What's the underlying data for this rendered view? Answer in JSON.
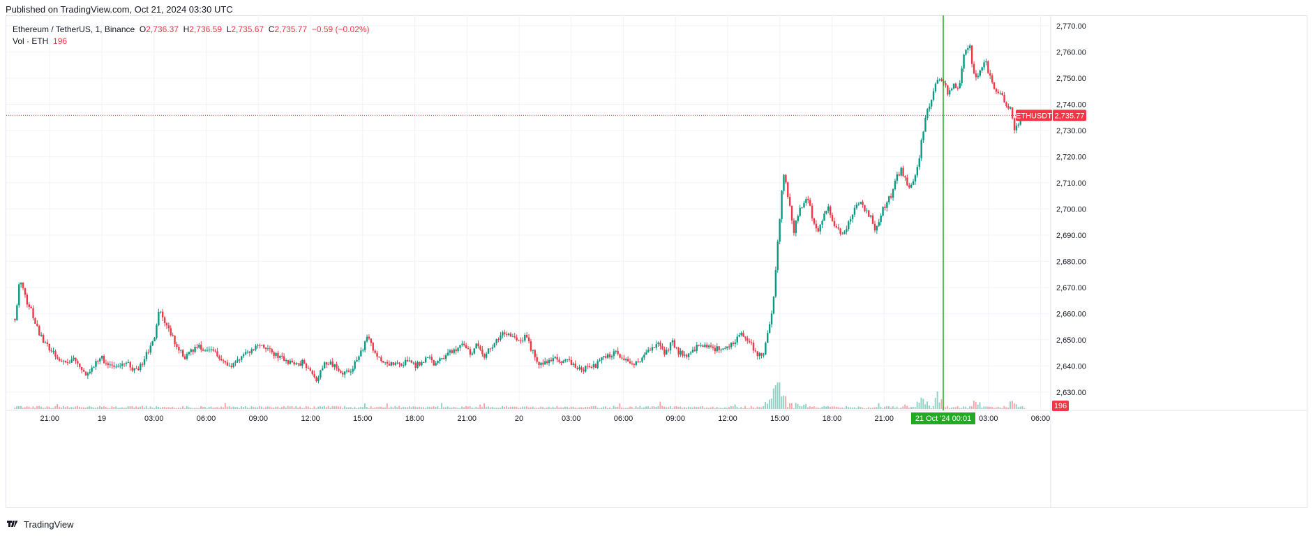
{
  "header": {
    "published": "Published on TradingView.com, Oct 21, 2024 03:30 UTC"
  },
  "legend": {
    "symbol": "Ethereum / TetherUS, 1, Binance",
    "o_label": "O",
    "o_value": "2,736.37",
    "h_label": "H",
    "h_value": "2,736.59",
    "l_label": "L",
    "l_value": "2,735.67",
    "c_label": "C",
    "c_value": "2,735.77",
    "change": "−0.59 (−0.02%)",
    "vol_label": "Vol · ETH",
    "vol_value": "196"
  },
  "footer": {
    "brand": "TradingView"
  },
  "colors": {
    "up": "#089981",
    "down": "#f23645",
    "crosshair": "#22ab22",
    "grid": "#f0f3fa"
  },
  "chart_data": {
    "type": "candlestick",
    "title": "Ethereum / TetherUS, 1, Binance",
    "xlabel": "",
    "ylabel": "",
    "y_scale_side": "right",
    "ylim": [
      2623,
      2774
    ],
    "y_ticks": [
      "2,630.00",
      "2,640.00",
      "2,650.00",
      "2,660.00",
      "2,670.00",
      "2,680.00",
      "2,690.00",
      "2,700.00",
      "2,710.00",
      "2,720.00",
      "2,730.00",
      "2,740.00",
      "2,750.00",
      "2,760.00",
      "2,770.00"
    ],
    "x_ticks": [
      {
        "label": "21:00",
        "hour": 2
      },
      {
        "label": "19",
        "hour": 5
      },
      {
        "label": "03:00",
        "hour": 8
      },
      {
        "label": "06:00",
        "hour": 11
      },
      {
        "label": "09:00",
        "hour": 14
      },
      {
        "label": "12:00",
        "hour": 17
      },
      {
        "label": "15:00",
        "hour": 20
      },
      {
        "label": "18:00",
        "hour": 23
      },
      {
        "label": "21:00",
        "hour": 26
      },
      {
        "label": "20",
        "hour": 29
      },
      {
        "label": "03:00",
        "hour": 32
      },
      {
        "label": "06:00",
        "hour": 35
      },
      {
        "label": "09:00",
        "hour": 38
      },
      {
        "label": "12:00",
        "hour": 41
      },
      {
        "label": "15:00",
        "hour": 44
      },
      {
        "label": "18:00",
        "hour": 47
      },
      {
        "label": "21:00",
        "hour": 50
      },
      {
        "label": "03:00",
        "hour": 56
      },
      {
        "label": "06:00",
        "hour": 59
      }
    ],
    "x_range_hours": [
      -0.5,
      59.5
    ],
    "price_path": [
      [
        0,
        2658
      ],
      [
        0.3,
        2674
      ],
      [
        0.6,
        2666
      ],
      [
        1,
        2660
      ],
      [
        1.4,
        2652
      ],
      [
        1.8,
        2648
      ],
      [
        2.2,
        2645
      ],
      [
        2.6,
        2642
      ],
      [
        3,
        2640
      ],
      [
        3.4,
        2643
      ],
      [
        3.8,
        2638
      ],
      [
        4.2,
        2637
      ],
      [
        4.6,
        2641
      ],
      [
        5,
        2643
      ],
      [
        5.4,
        2640
      ],
      [
        5.8,
        2639
      ],
      [
        6.2,
        2642
      ],
      [
        6.6,
        2640
      ],
      [
        7,
        2638
      ],
      [
        7.3,
        2641
      ],
      [
        7.7,
        2646
      ],
      [
        8,
        2650
      ],
      [
        8.3,
        2662
      ],
      [
        8.6,
        2657
      ],
      [
        9,
        2652
      ],
      [
        9.4,
        2646
      ],
      [
        9.8,
        2643
      ],
      [
        10.2,
        2646
      ],
      [
        10.6,
        2648
      ],
      [
        11,
        2645
      ],
      [
        11.4,
        2646
      ],
      [
        11.8,
        2642
      ],
      [
        12.2,
        2641
      ],
      [
        12.6,
        2640
      ],
      [
        13,
        2643
      ],
      [
        13.4,
        2645
      ],
      [
        13.8,
        2647
      ],
      [
        14.2,
        2648
      ],
      [
        14.6,
        2646
      ],
      [
        15,
        2644
      ],
      [
        15.4,
        2643
      ],
      [
        15.8,
        2641
      ],
      [
        16.2,
        2640
      ],
      [
        16.6,
        2642
      ],
      [
        17,
        2637
      ],
      [
        17.3,
        2634
      ],
      [
        17.7,
        2640
      ],
      [
        18.1,
        2641
      ],
      [
        18.5,
        2640
      ],
      [
        18.9,
        2637
      ],
      [
        19.3,
        2638
      ],
      [
        19.7,
        2643
      ],
      [
        20,
        2646
      ],
      [
        20.3,
        2652
      ],
      [
        20.6,
        2646
      ],
      [
        21,
        2642
      ],
      [
        21.4,
        2640
      ],
      [
        21.8,
        2641
      ],
      [
        22.2,
        2640
      ],
      [
        22.6,
        2642
      ],
      [
        23,
        2640
      ],
      [
        23.4,
        2641
      ],
      [
        23.8,
        2643
      ],
      [
        24.2,
        2640
      ],
      [
        24.6,
        2643
      ],
      [
        25,
        2645
      ],
      [
        25.4,
        2646
      ],
      [
        25.8,
        2648
      ],
      [
        26.2,
        2645
      ],
      [
        26.6,
        2648
      ],
      [
        27,
        2644
      ],
      [
        27.4,
        2647
      ],
      [
        27.8,
        2651
      ],
      [
        28.2,
        2653
      ],
      [
        28.6,
        2652
      ],
      [
        29,
        2650
      ],
      [
        29.4,
        2651
      ],
      [
        29.8,
        2645
      ],
      [
        30.2,
        2640
      ],
      [
        30.6,
        2641
      ],
      [
        31,
        2643
      ],
      [
        31.4,
        2642
      ],
      [
        31.8,
        2643
      ],
      [
        32.2,
        2640
      ],
      [
        32.6,
        2638
      ],
      [
        33,
        2640
      ],
      [
        33.4,
        2640
      ],
      [
        33.8,
        2643
      ],
      [
        34.2,
        2644
      ],
      [
        34.6,
        2645
      ],
      [
        35,
        2643
      ],
      [
        35.4,
        2642
      ],
      [
        35.8,
        2641
      ],
      [
        36.2,
        2644
      ],
      [
        36.6,
        2647
      ],
      [
        37,
        2648
      ],
      [
        37.4,
        2645
      ],
      [
        37.8,
        2649
      ],
      [
        38.2,
        2645
      ],
      [
        38.6,
        2644
      ],
      [
        39,
        2646
      ],
      [
        39.4,
        2648
      ],
      [
        39.8,
        2648
      ],
      [
        40.2,
        2646
      ],
      [
        40.6,
        2647
      ],
      [
        41,
        2648
      ],
      [
        41.4,
        2649
      ],
      [
        41.8,
        2652
      ],
      [
        42.2,
        2650
      ],
      [
        42.6,
        2645
      ],
      [
        43,
        2643
      ],
      [
        43.3,
        2652
      ],
      [
        43.6,
        2662
      ],
      [
        43.8,
        2680
      ],
      [
        44,
        2697
      ],
      [
        44.2,
        2715
      ],
      [
        44.4,
        2708
      ],
      [
        44.6,
        2700
      ],
      [
        44.8,
        2690
      ],
      [
        45,
        2697
      ],
      [
        45.3,
        2702
      ],
      [
        45.6,
        2704
      ],
      [
        45.9,
        2696
      ],
      [
        46.2,
        2692
      ],
      [
        46.5,
        2697
      ],
      [
        46.8,
        2700
      ],
      [
        47.1,
        2694
      ],
      [
        47.4,
        2692
      ],
      [
        47.7,
        2690
      ],
      [
        48,
        2695
      ],
      [
        48.3,
        2700
      ],
      [
        48.6,
        2703
      ],
      [
        48.9,
        2700
      ],
      [
        49.2,
        2697
      ],
      [
        49.5,
        2692
      ],
      [
        49.8,
        2698
      ],
      [
        50.1,
        2702
      ],
      [
        50.4,
        2705
      ],
      [
        50.7,
        2712
      ],
      [
        51,
        2715
      ],
      [
        51.3,
        2710
      ],
      [
        51.6,
        2708
      ],
      [
        51.9,
        2715
      ],
      [
        52.2,
        2728
      ],
      [
        52.5,
        2738
      ],
      [
        52.8,
        2744
      ],
      [
        53.1,
        2750
      ],
      [
        53.4,
        2748
      ],
      [
        53.7,
        2744
      ],
      [
        54,
        2747
      ],
      [
        54.3,
        2745
      ],
      [
        54.6,
        2760
      ],
      [
        54.9,
        2763
      ],
      [
        55.2,
        2750
      ],
      [
        55.5,
        2752
      ],
      [
        55.8,
        2757
      ],
      [
        56.1,
        2750
      ],
      [
        56.4,
        2745
      ],
      [
        56.7,
        2745
      ],
      [
        57,
        2740
      ],
      [
        57.3,
        2738
      ],
      [
        57.5,
        2730
      ],
      [
        57.7,
        2733
      ],
      [
        57.9,
        2735
      ],
      [
        58.1,
        2736
      ]
    ],
    "volume_spikes": [
      [
        43.2,
        12
      ],
      [
        43.5,
        25
      ],
      [
        43.7,
        35
      ],
      [
        43.9,
        40
      ],
      [
        44.1,
        30
      ],
      [
        44.3,
        20
      ],
      [
        44.6,
        14
      ],
      [
        45,
        10
      ],
      [
        45.4,
        8
      ],
      [
        52.0,
        14
      ],
      [
        52.2,
        22
      ],
      [
        52.4,
        12
      ],
      [
        52.6,
        9
      ],
      [
        53.0,
        28
      ],
      [
        53.3,
        10
      ],
      [
        55.2,
        15
      ],
      [
        55.5,
        10
      ],
      [
        57.3,
        12
      ],
      [
        57.5,
        9
      ]
    ],
    "volume_ylim": [
      0,
      45
    ],
    "series": [
      {
        "name": "Ethereum / TetherUS"
      },
      {
        "name": "Vol · ETH"
      }
    ],
    "last_price": 2735.77,
    "last_price_label": "2,735.77",
    "last_price_tag": "ETHUSDT",
    "volume_tag": "196",
    "crosshair_hour": 53.4,
    "crosshair_label": "21 Oct '24   00:01",
    "grid": true,
    "legend_position": "top-left"
  }
}
